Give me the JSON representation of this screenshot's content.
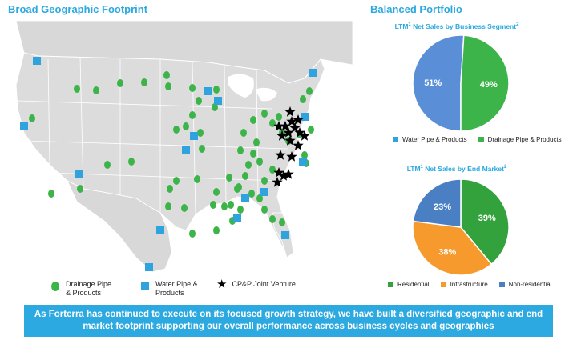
{
  "left_title": "Broad Geographic Footprint",
  "right_title": "Balanced Portfolio",
  "map_legend": {
    "drainage": "Drainage Pipe & Products",
    "water": "Water Pipe & Products",
    "joint_venture": "CP&P Joint Venture"
  },
  "banner": "As Forterra has continued to execute on its focused growth strategy, we have built a diversified geographic and end market footprint supporting our overall performance across business cycles and geographies",
  "colors": {
    "title": "#2ba9e0",
    "drainage": "#3cb44a",
    "water": "#2ea3dd",
    "residential": "#33a23c",
    "infrastructure": "#f79a2d",
    "non_residential": "#4a7fc4"
  },
  "chart_data": [
    {
      "type": "pie",
      "title": "LTM",
      "title_sup": "1",
      "title_rest": " Net Sales by Business Segment",
      "title_sup2": "2",
      "categories": [
        "Water Pipe & Products",
        "Drainage Pipe & Products"
      ],
      "values": [
        51,
        49
      ],
      "labels": [
        "51%",
        "49%"
      ],
      "colors": [
        "#5a8fd8",
        "#3cb44a"
      ],
      "legend": "bottom"
    },
    {
      "type": "pie",
      "title": "LTM",
      "title_sup": "1",
      "title_rest": " Net Sales by End Market",
      "title_sup2": "2",
      "categories": [
        "Residential",
        "Infrastructure",
        "Non-residential"
      ],
      "values": [
        39,
        38,
        23
      ],
      "labels": [
        "39%",
        "38%",
        "23%"
      ],
      "colors": [
        "#33a23c",
        "#f79a2d",
        "#4a7fc4"
      ],
      "legend": "bottom"
    }
  ]
}
